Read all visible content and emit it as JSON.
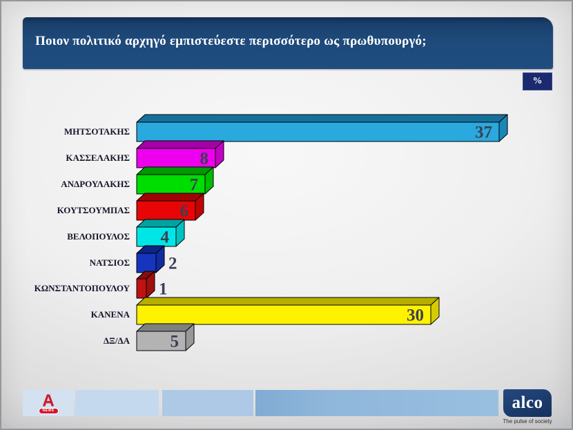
{
  "header": {
    "title": "Ποιον πολιτικό αρχηγό εμπιστεύεστε περισσότερο ως πρωθυπουργό;",
    "unit_badge": "%"
  },
  "chart_data": {
    "type": "bar",
    "orientation": "horizontal",
    "title": "Ποιον πολιτικό αρχηγό εμπιστεύεστε περισσότερο ως πρωθυπουργό;",
    "unit": "%",
    "categories": [
      "ΜΗΤΣΟΤΑΚΗΣ",
      "ΚΑΣΣΕΛΑΚΗΣ",
      "ΑΝΔΡΟΥΛΑΚΗΣ",
      "ΚΟΥΤΣΟΥΜΠΑΣ",
      "ΒΕΛΟΠΟΥΛΟΣ",
      "ΝΑΤΣΙΟΣ",
      "ΚΩΝΣΤΑΝΤΟΠΟΥΛΟΥ",
      "ΚΑΝΕΝΑ",
      "ΔΞ/ΔΑ"
    ],
    "values": [
      37,
      8,
      7,
      6,
      4,
      2,
      1,
      30,
      5
    ],
    "bar_colors": [
      {
        "front": "#29a9de",
        "top": "#15719b",
        "side": "#1a86b8"
      },
      {
        "front": "#ee00ee",
        "top": "#a800a8",
        "side": "#c400c4"
      },
      {
        "front": "#00dd00",
        "top": "#009900",
        "side": "#00bb00"
      },
      {
        "front": "#e80505",
        "top": "#a00404",
        "side": "#c00404"
      },
      {
        "front": "#00e6e6",
        "top": "#00a2a2",
        "side": "#00c2c2"
      },
      {
        "front": "#1535be",
        "top": "#0d2488",
        "side": "#112ca2"
      },
      {
        "front": "#c01212",
        "top": "#850d0d",
        "side": "#9e0f0f"
      },
      {
        "front": "#fff200",
        "top": "#b8ae00",
        "side": "#d6cb00"
      },
      {
        "front": "#b3b3b3",
        "top": "#7f7f7f",
        "side": "#989898"
      }
    ],
    "bar_outline_color": "#000000",
    "value_label_color": "#3b3f54",
    "xlim": [
      0,
      40
    ],
    "grid": false,
    "legend": false
  },
  "footer": {
    "alpha": {
      "letter": "A",
      "news": "NEWS"
    },
    "alco": {
      "name": "alco",
      "tagline": "The pulse of society"
    }
  }
}
